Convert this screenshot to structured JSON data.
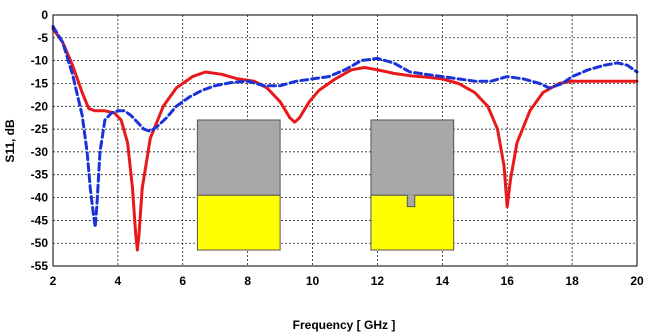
{
  "chart_data": {
    "type": "line",
    "xlabel": "Frequency [ GHz ]",
    "ylabel": "S11, dB",
    "xlim": [
      2,
      20
    ],
    "ylim": [
      -55,
      0
    ],
    "xticks": [
      2,
      4,
      6,
      8,
      10,
      12,
      14,
      16,
      18,
      20
    ],
    "yticks": [
      0,
      -5,
      -10,
      -15,
      -20,
      -25,
      -30,
      -35,
      -40,
      -45,
      -50,
      -55
    ],
    "grid": true,
    "colors": {
      "red": "#e8191a",
      "blue": "#1a33d9",
      "patch_gray": "#a8a8a8",
      "patch_yellow": "#ffff00"
    },
    "series": [
      {
        "style": "solid",
        "color": "#e8191a",
        "x": [
          2,
          2.3,
          2.6,
          2.9,
          3.1,
          3.3,
          3.6,
          3.9,
          4.1,
          4.3,
          4.45,
          4.55,
          4.6,
          4.65,
          4.75,
          5.0,
          5.4,
          5.8,
          6.3,
          6.7,
          7.2,
          7.7,
          8.2,
          8.6,
          9.0,
          9.3,
          9.45,
          9.6,
          9.9,
          10.2,
          10.7,
          11.2,
          11.6,
          12.0,
          12.5,
          13.0,
          13.5,
          14.0,
          14.5,
          15.0,
          15.4,
          15.7,
          15.9,
          16.0,
          16.1,
          16.3,
          16.7,
          17.1,
          17.6,
          18.0,
          18.6,
          19.2,
          19.6,
          20
        ],
        "y": [
          -3,
          -6,
          -11,
          -17,
          -20.5,
          -21,
          -21,
          -21.5,
          -23,
          -28,
          -38,
          -48,
          -51.5,
          -48,
          -38,
          -27,
          -20,
          -16,
          -13.5,
          -12.5,
          -13,
          -14,
          -14.5,
          -16,
          -19,
          -22.5,
          -23.5,
          -22.5,
          -19,
          -16.5,
          -14,
          -12,
          -11.5,
          -12,
          -12.8,
          -13.3,
          -13.6,
          -14,
          -15,
          -17,
          -20,
          -25,
          -33,
          -42,
          -36,
          -28,
          -21,
          -17,
          -15,
          -14.5,
          -14.5,
          -14.5,
          -14.5,
          -14.5
        ]
      },
      {
        "style": "dashed",
        "color": "#1a33d9",
        "x": [
          2,
          2.3,
          2.6,
          2.9,
          3.05,
          3.15,
          3.25,
          3.3,
          3.35,
          3.45,
          3.6,
          3.8,
          4.0,
          4.2,
          4.4,
          4.6,
          4.8,
          5.0,
          5.2,
          5.5,
          5.8,
          6.2,
          6.6,
          7.0,
          7.5,
          8.0,
          8.5,
          9.0,
          9.5,
          10.0,
          10.5,
          11.0,
          11.5,
          12.0,
          12.5,
          13.0,
          13.5,
          14.0,
          14.5,
          15.0,
          15.5,
          16.0,
          16.5,
          17.0,
          17.3,
          17.7,
          18.0,
          18.5,
          19.0,
          19.4,
          19.7,
          20
        ],
        "y": [
          -2.5,
          -6,
          -13,
          -22,
          -30,
          -38,
          -44,
          -46.5,
          -42,
          -30,
          -23,
          -21.5,
          -21,
          -21,
          -22,
          -23.5,
          -25,
          -25.5,
          -24.5,
          -22.5,
          -20,
          -18,
          -16.5,
          -15.5,
          -14.8,
          -14.5,
          -15.5,
          -15.5,
          -14.5,
          -14,
          -13.5,
          -12,
          -10,
          -9.5,
          -10.5,
          -12.5,
          -13,
          -13.5,
          -14,
          -14.5,
          -14.5,
          -13.5,
          -14,
          -15,
          -16,
          -15,
          -13.5,
          -12,
          -11,
          -10.5,
          -11,
          -12.5
        ]
      }
    ],
    "insets": [
      {
        "label": "patch-plain",
        "x_range": [
          6.45,
          9.0
        ],
        "top_gray_y": -23,
        "split_y": -39.5,
        "bottom_y": -51.5,
        "notch": false
      },
      {
        "label": "patch-with-slot",
        "x_range": [
          11.8,
          14.35
        ],
        "top_gray_y": -23,
        "split_y": -39.5,
        "bottom_y": -51.5,
        "notch": true,
        "notch_x": [
          12.92,
          13.15
        ],
        "notch_bottom_y": -42
      }
    ]
  }
}
